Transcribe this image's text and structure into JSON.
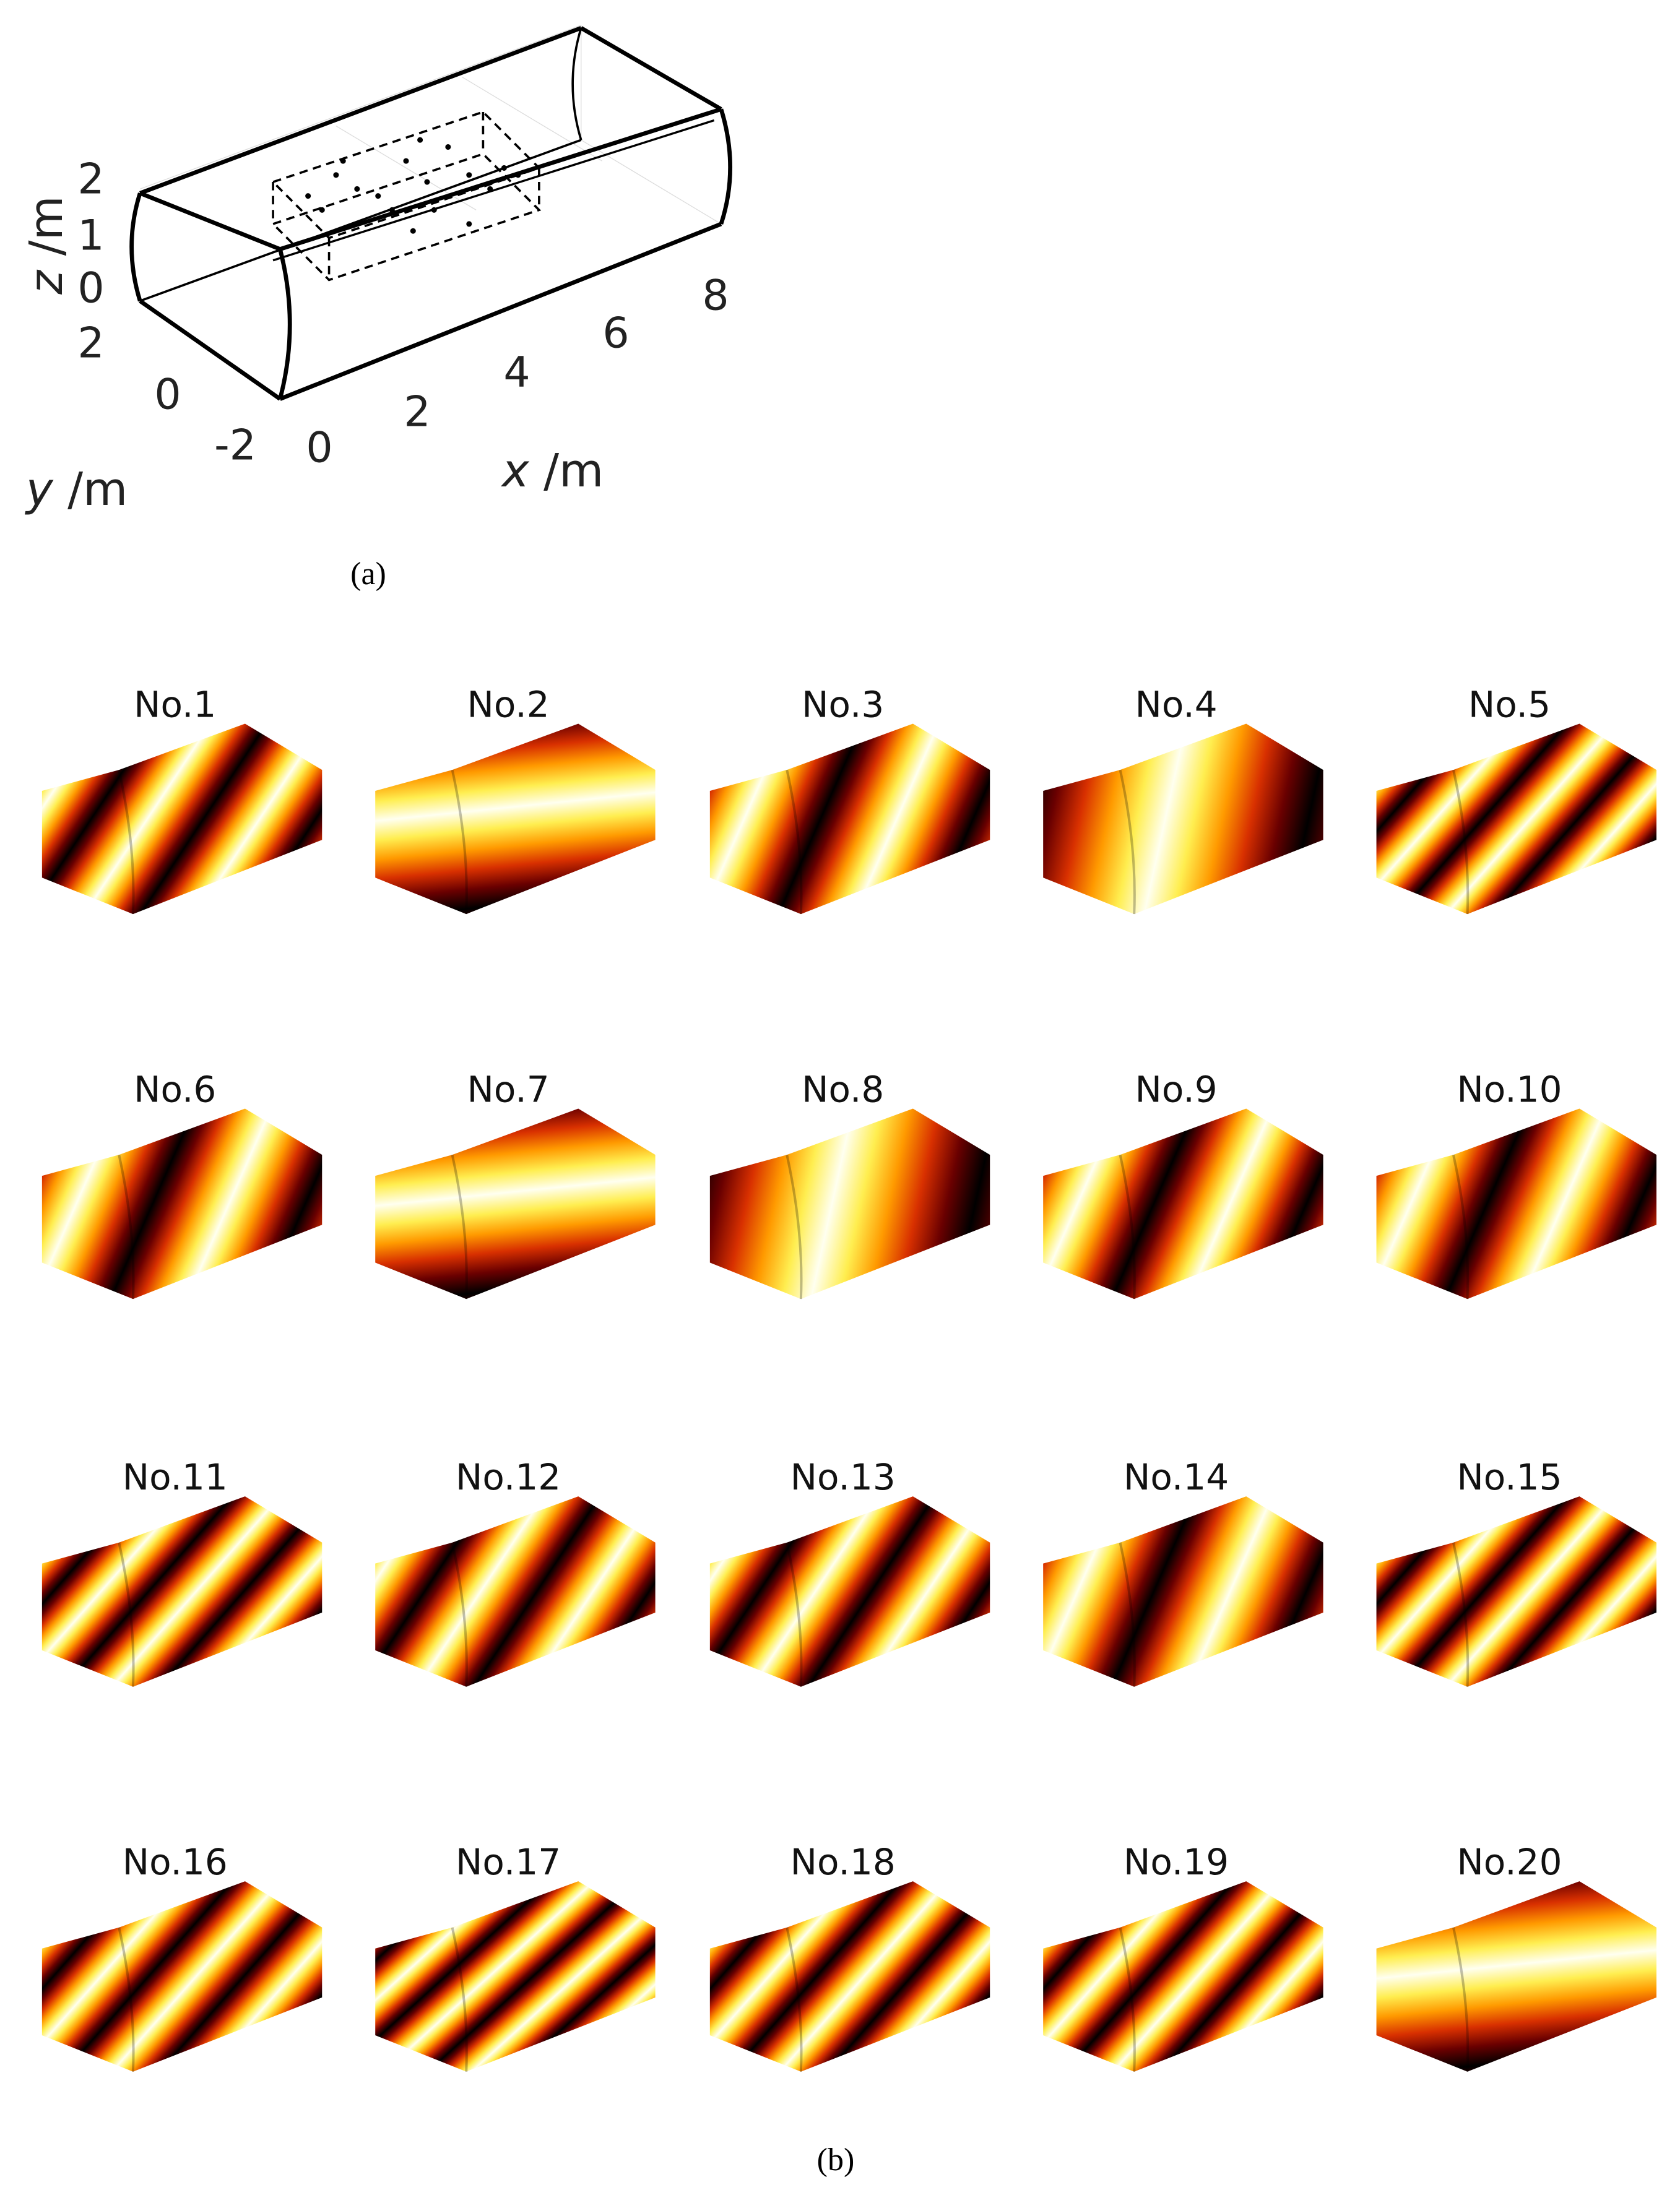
{
  "panel_a": {
    "z_label": {
      "symbol": "z",
      "unit": "/m"
    },
    "y_label": {
      "symbol": "y",
      "unit": "/m"
    },
    "x_label": {
      "symbol": "x",
      "unit": "/m"
    },
    "z_ticks": [
      "2",
      "1",
      "0"
    ],
    "y_ticks": [
      "2",
      "0",
      "-2"
    ],
    "x_ticks": [
      "0",
      "2",
      "4",
      "6",
      "8"
    ],
    "caption": "(a)"
  },
  "panel_b": {
    "modes": [
      "No.1",
      "No.2",
      "No.3",
      "No.4",
      "No.5",
      "No.6",
      "No.7",
      "No.8",
      "No.9",
      "No.10",
      "No.11",
      "No.12",
      "No.13",
      "No.14",
      "No.15",
      "No.16",
      "No.17",
      "No.18",
      "No.19",
      "No.20"
    ],
    "caption": "(b)"
  }
}
